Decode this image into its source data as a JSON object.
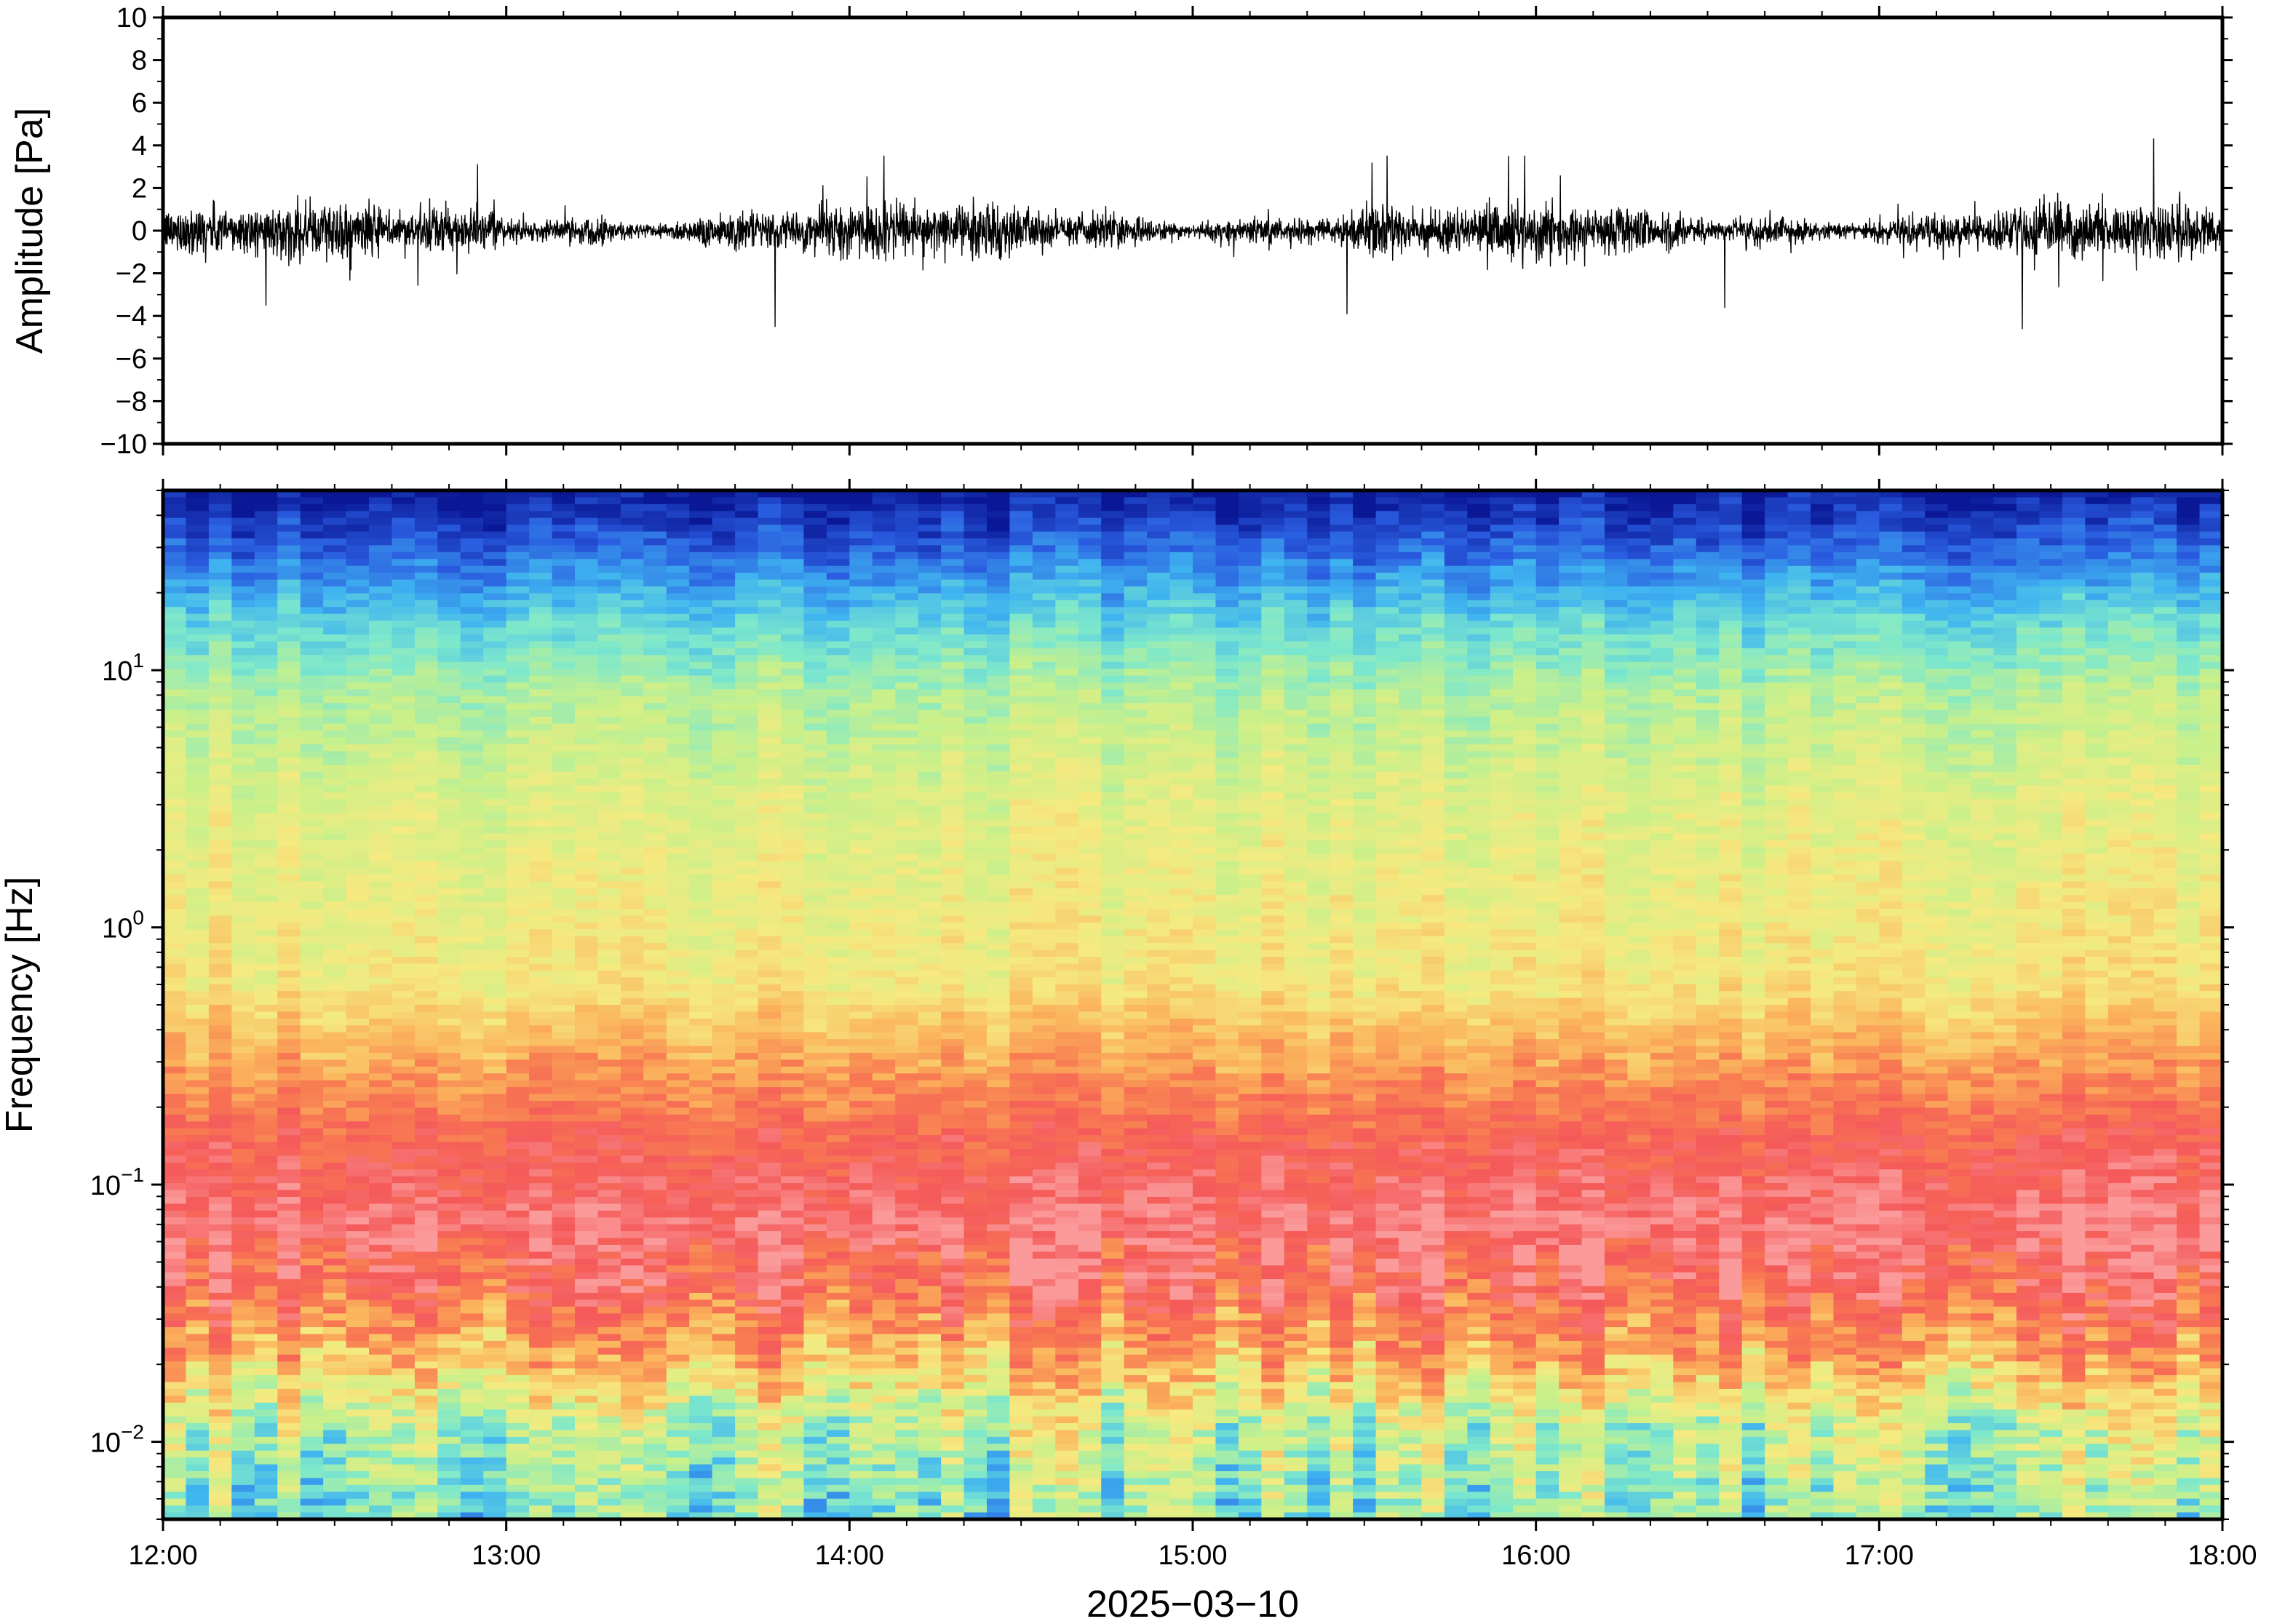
{
  "chart_data": [
    {
      "type": "line",
      "name": "waveform",
      "ylabel": "Amplitude [Pa]",
      "ylim": [
        -10,
        10
      ],
      "yticks": [
        10,
        8,
        6,
        4,
        2,
        0,
        -2,
        -4,
        -6,
        -8,
        -10
      ],
      "ytick_labels": [
        "10",
        "8",
        "6",
        "4",
        "2",
        "0",
        "−2",
        "−4",
        "−6",
        "−8",
        "−10"
      ],
      "xlim": [
        "12:00",
        "18:00"
      ],
      "baseline_amplitude": 0.8,
      "peaks": [
        {
          "time": "12:18",
          "value": -3.5
        },
        {
          "time": "12:55",
          "value": 3.1
        },
        {
          "time": "13:47",
          "value": -4.5
        },
        {
          "time": "14:06",
          "value": 3.5
        },
        {
          "time": "15:27",
          "value": -3.9
        },
        {
          "time": "15:34",
          "value": 3.5
        },
        {
          "time": "15:58",
          "value": 3.5
        },
        {
          "time": "16:33",
          "value": -3.6
        },
        {
          "time": "17:25",
          "value": -4.6
        },
        {
          "time": "17:48",
          "value": 4.3
        }
      ],
      "line_color": "#000000"
    },
    {
      "type": "heatmap",
      "name": "spectrogram",
      "ylabel": "Frequency [Hz]",
      "yscale": "log",
      "ylim": [
        0.005,
        50
      ],
      "yticks": [
        0.01,
        0.1,
        1,
        10
      ],
      "ytick_labels": [
        {
          "base": "10",
          "exp": "−2"
        },
        {
          "base": "10",
          "exp": "−1"
        },
        {
          "base": "10",
          "exp": "0"
        },
        {
          "base": "10",
          "exp": "1"
        }
      ],
      "xlabel": "2025−03−10",
      "xticks": [
        "12:00",
        "13:00",
        "14:00",
        "15:00",
        "16:00",
        "17:00",
        "18:00"
      ],
      "xlim": [
        "12:00",
        "18:00"
      ],
      "colormap": [
        "#0a1896",
        "#2a5ce0",
        "#3fb4f0",
        "#7de8cc",
        "#c9f08a",
        "#f5ea80",
        "#fbb45c",
        "#f87a52",
        "#f55a5a",
        "#fb9a9a"
      ],
      "band_levels": [
        {
          "freq": 50,
          "level": 0.0
        },
        {
          "freq": 30,
          "level": 0.12
        },
        {
          "freq": 15,
          "level": 0.3
        },
        {
          "freq": 8,
          "level": 0.42
        },
        {
          "freq": 3,
          "level": 0.5
        },
        {
          "freq": 0.6,
          "level": 0.56
        },
        {
          "freq": 0.3,
          "level": 0.7
        },
        {
          "freq": 0.15,
          "level": 0.85
        },
        {
          "freq": 0.07,
          "level": 0.95
        },
        {
          "freq": 0.04,
          "level": 0.86
        },
        {
          "freq": 0.02,
          "level": 0.65
        },
        {
          "freq": 0.012,
          "level": 0.45
        },
        {
          "freq": 0.005,
          "level": 0.35
        }
      ]
    }
  ]
}
